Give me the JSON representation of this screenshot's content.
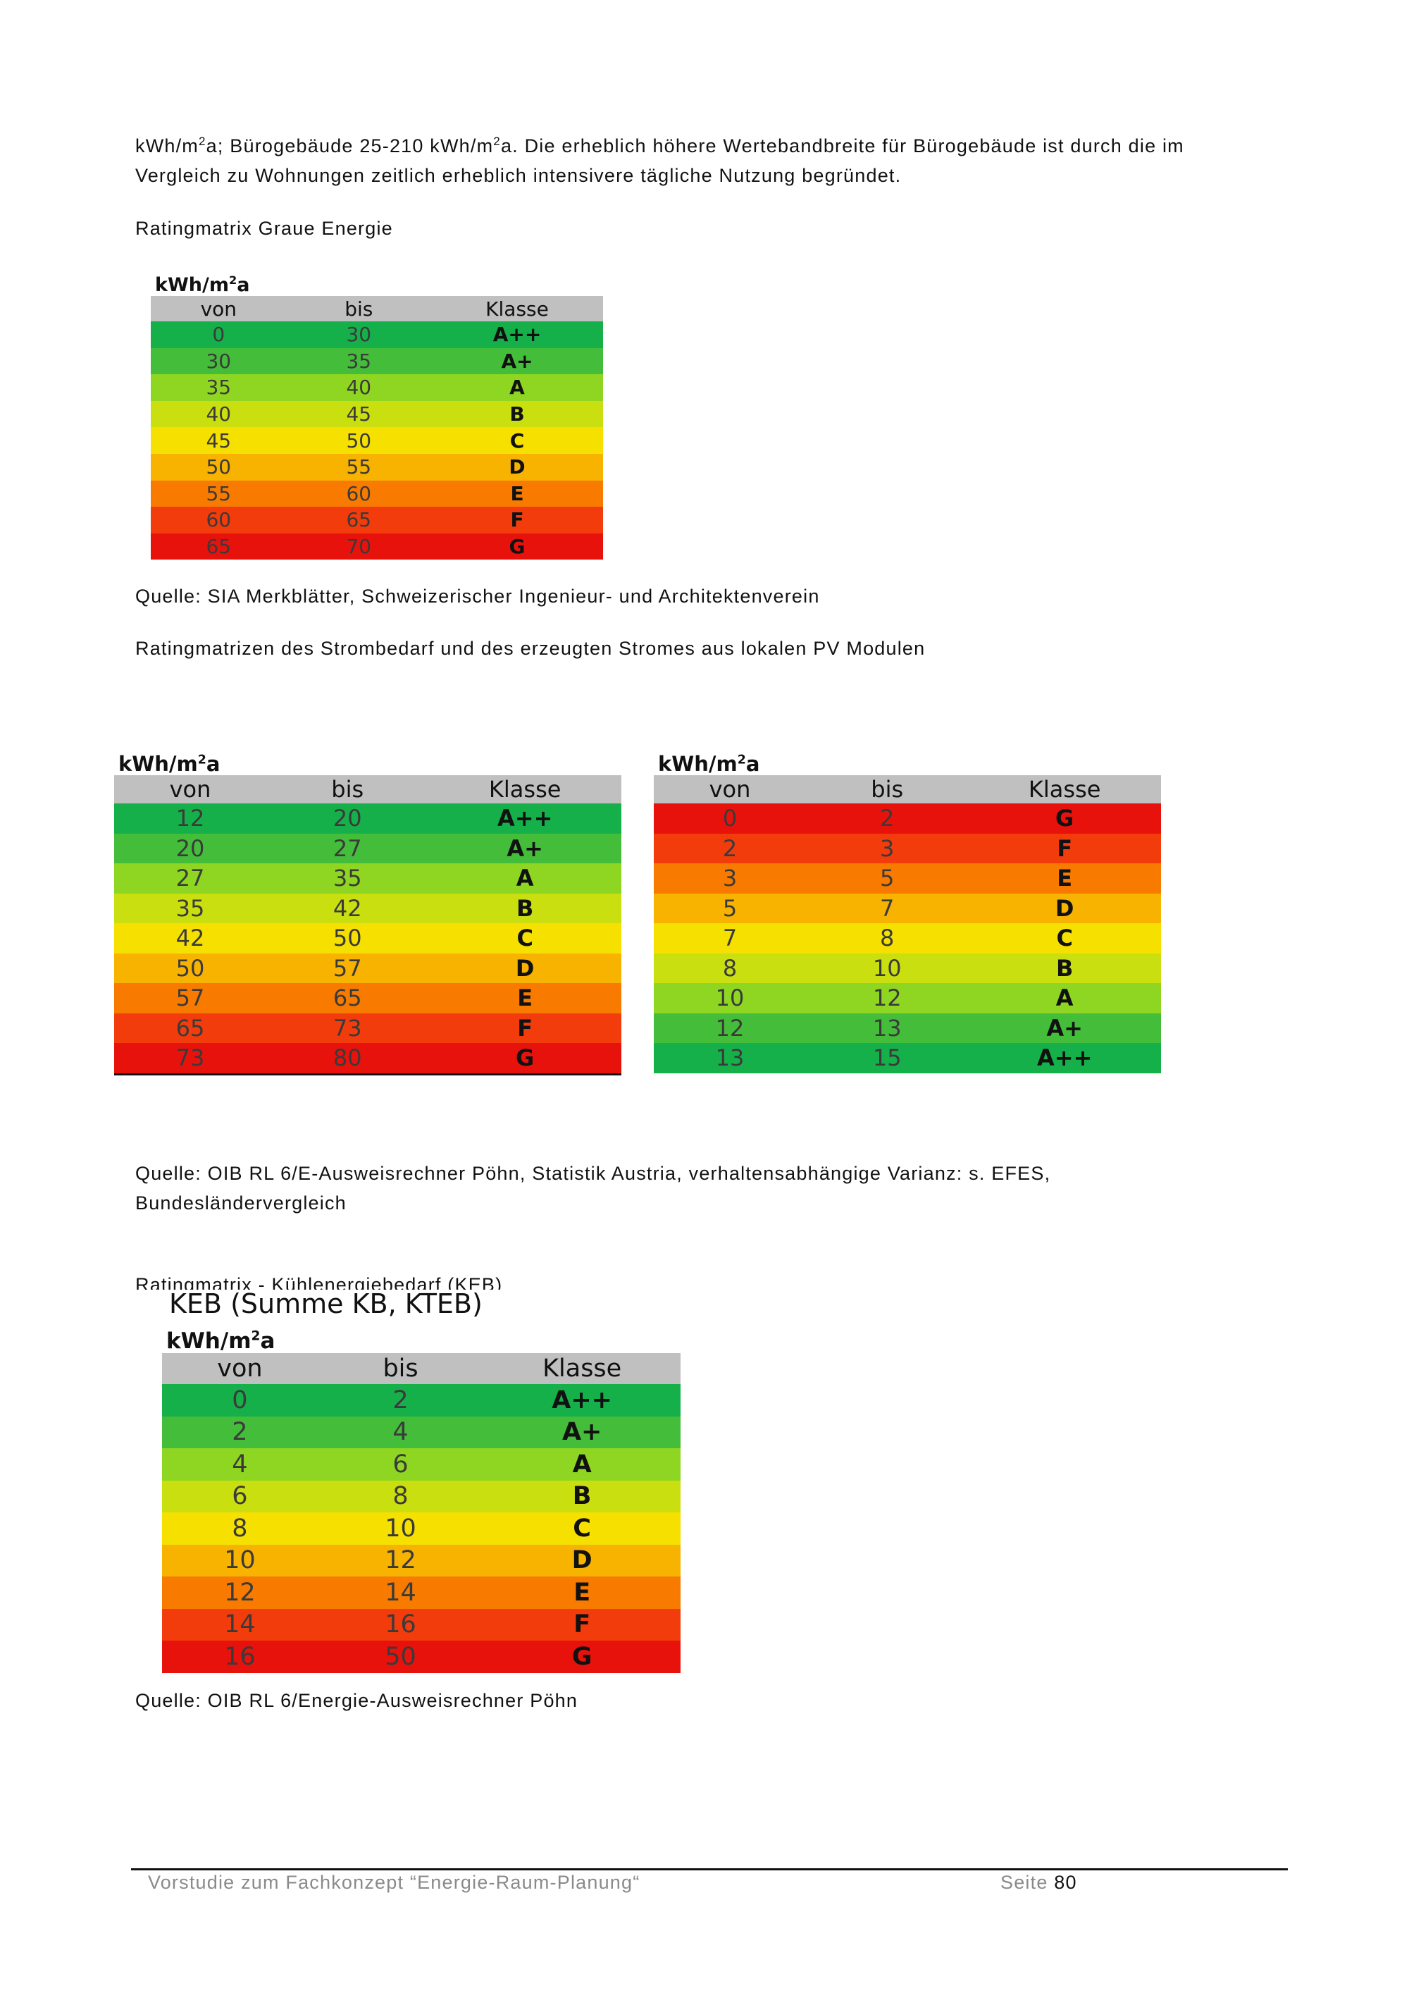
{
  "intro": {
    "line1_a": "kWh/m",
    "line1_sup1": "2",
    "line1_b": "a; Bürogebäude 25-210 kWh/m",
    "line1_sup2": "2",
    "line1_c": "a. Die erheblich höhere Wertebandbreite für Bürogebäude ist durch die im",
    "line2": "Vergleich zu Wohnungen zeitlich erheblich intensivere tägliche Nutzung begründet."
  },
  "heading_graue": "Ratingmatrix Graue Energie",
  "source_sia": "Quelle: SIA Merkblätter, Schweizerischer Ingenieur- und Architektenverein",
  "heading_strom": "Ratingmatrizen des Strombedarf und des erzeugten Stromes aus lokalen PV Modulen",
  "source_oib1_line1": "Quelle: OIB RL 6/E-Ausweisrechner Pöhn, Statistik Austria, verhaltensabhängige Varianz: s. EFES,",
  "source_oib1_line2": "Bundesländervergleich",
  "heading_keb": "Ratingmatrix - Kühlenergiebedarf (KEB)",
  "source_oib2": "Quelle: OIB RL 6/Energie-Ausweisrechner Pöhn",
  "unit": {
    "base": "kWh/m",
    "sup": "2",
    "suffix": "a"
  },
  "headers": {
    "von": "von",
    "bis": "bis",
    "klasse": "Klasse"
  },
  "keb_caption": "KEB (Summe KB, KTEB)",
  "colors": {
    "A++": "#16b04a",
    "A+": "#44bd3a",
    "A": "#8ed621",
    "B": "#cadf10",
    "C": "#f5e000",
    "D": "#f8b200",
    "E": "#f87b00",
    "F": "#f23c0b",
    "G": "#e8120c"
  },
  "table_graue": [
    {
      "von": "0",
      "bis": "30",
      "klasse": "A++"
    },
    {
      "von": "30",
      "bis": "35",
      "klasse": "A+"
    },
    {
      "von": "35",
      "bis": "40",
      "klasse": "A"
    },
    {
      "von": "40",
      "bis": "45",
      "klasse": "B"
    },
    {
      "von": "45",
      "bis": "50",
      "klasse": "C"
    },
    {
      "von": "50",
      "bis": "55",
      "klasse": "D"
    },
    {
      "von": "55",
      "bis": "60",
      "klasse": "E"
    },
    {
      "von": "60",
      "bis": "65",
      "klasse": "F"
    },
    {
      "von": "65",
      "bis": "70",
      "klasse": "G"
    }
  ],
  "table_strom": [
    {
      "von": "12",
      "bis": "20",
      "klasse": "A++"
    },
    {
      "von": "20",
      "bis": "27",
      "klasse": "A+"
    },
    {
      "von": "27",
      "bis": "35",
      "klasse": "A"
    },
    {
      "von": "35",
      "bis": "42",
      "klasse": "B"
    },
    {
      "von": "42",
      "bis": "50",
      "klasse": "C"
    },
    {
      "von": "50",
      "bis": "57",
      "klasse": "D"
    },
    {
      "von": "57",
      "bis": "65",
      "klasse": "E"
    },
    {
      "von": "65",
      "bis": "73",
      "klasse": "F"
    },
    {
      "von": "73",
      "bis": "80",
      "klasse": "G"
    }
  ],
  "table_pv": [
    {
      "von": "0",
      "bis": "2",
      "klasse": "G"
    },
    {
      "von": "2",
      "bis": "3",
      "klasse": "F"
    },
    {
      "von": "3",
      "bis": "5",
      "klasse": "E"
    },
    {
      "von": "5",
      "bis": "7",
      "klasse": "D"
    },
    {
      "von": "7",
      "bis": "8",
      "klasse": "C"
    },
    {
      "von": "8",
      "bis": "10",
      "klasse": "B"
    },
    {
      "von": "10",
      "bis": "12",
      "klasse": "A"
    },
    {
      "von": "12",
      "bis": "13",
      "klasse": "A+"
    },
    {
      "von": "13",
      "bis": "15",
      "klasse": "A++"
    }
  ],
  "table_keb": [
    {
      "von": "0",
      "bis": "2",
      "klasse": "A++"
    },
    {
      "von": "2",
      "bis": "4",
      "klasse": "A+"
    },
    {
      "von": "4",
      "bis": "6",
      "klasse": "A"
    },
    {
      "von": "6",
      "bis": "8",
      "klasse": "B"
    },
    {
      "von": "8",
      "bis": "10",
      "klasse": "C"
    },
    {
      "von": "10",
      "bis": "12",
      "klasse": "D"
    },
    {
      "von": "12",
      "bis": "14",
      "klasse": "E"
    },
    {
      "von": "14",
      "bis": "16",
      "klasse": "F"
    },
    {
      "von": "16",
      "bis": "50",
      "klasse": "G"
    }
  ],
  "footer": {
    "title": "Vorstudie zum Fachkonzept “Energie-Raum-Planung“",
    "page_label": "Seite",
    "page_number": "80"
  }
}
